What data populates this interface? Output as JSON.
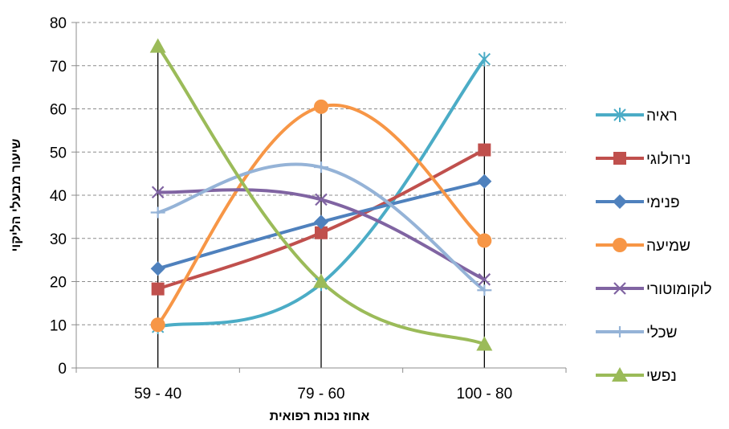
{
  "chart_data": {
    "type": "line",
    "categories": [
      "59 - 40",
      "79 - 60",
      "100 - 80"
    ],
    "xlabel": "אחוז נכות רפואית",
    "ylabel": "שיעור מבעלי הליקוי",
    "ylim": [
      0,
      80
    ],
    "yticks": [
      0,
      10,
      20,
      30,
      40,
      50,
      60,
      70,
      80
    ],
    "grid": "horizontal-dashed",
    "legend_position": "right",
    "series": [
      {
        "name": "ראיה",
        "values": [
          9.5,
          19.5,
          71.5
        ],
        "color": "#4BACC6",
        "marker": "asterisk"
      },
      {
        "name": "נירולוגי",
        "values": [
          18.3,
          31.3,
          50.5
        ],
        "color": "#C0504D",
        "marker": "square"
      },
      {
        "name": "פנימי",
        "values": [
          23,
          33.8,
          43.2
        ],
        "color": "#4F81BD",
        "marker": "diamond"
      },
      {
        "name": "שמיעה",
        "values": [
          10,
          60.5,
          29.5
        ],
        "color": "#F79646",
        "marker": "circle"
      },
      {
        "name": "לוקומוטורי",
        "values": [
          40.7,
          39,
          20.5
        ],
        "color": "#8064A2",
        "marker": "x"
      },
      {
        "name": "שכלי",
        "values": [
          36,
          46.5,
          18
        ],
        "color": "#95B3D7",
        "marker": "plus"
      },
      {
        "name": "נפשי",
        "values": [
          74.5,
          20,
          5.5
        ],
        "color": "#9BBB59",
        "marker": "triangle"
      }
    ]
  }
}
